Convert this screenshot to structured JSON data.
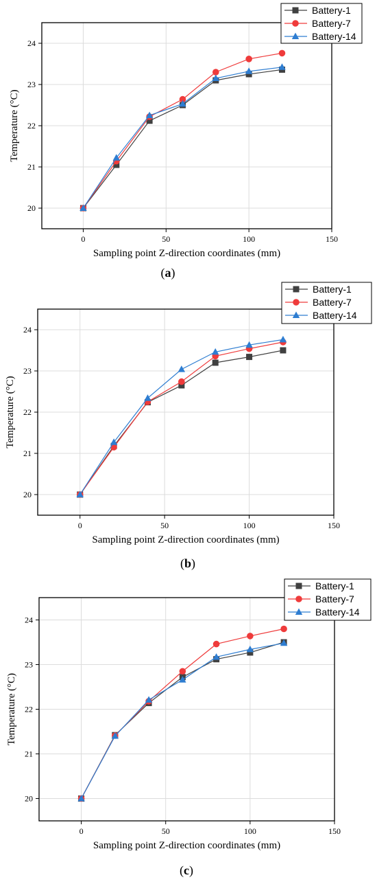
{
  "colors": {
    "Battery-1": "#404040",
    "Battery-7": "#ef3b3b",
    "Battery-14": "#2e7dd1",
    "grid": "#dcdcdc"
  },
  "chart_data": [
    {
      "type": "line",
      "panel": "(a)",
      "caption_letter": "a",
      "xlabel": "Sampling point Z-direction coordinates (mm)",
      "ylabel": "Temperature (°C)",
      "xlim": [
        -25,
        150
      ],
      "ylim": [
        19.5,
        24.5
      ],
      "xticks": [
        0,
        50,
        100,
        150
      ],
      "yticks": [
        20,
        21,
        22,
        23,
        24
      ],
      "grid": true,
      "legend_position": "top-right",
      "x": [
        0,
        20,
        40,
        60,
        80,
        100,
        120
      ],
      "series": [
        {
          "name": "Battery-1",
          "marker": "square",
          "values": [
            20.0,
            21.05,
            22.12,
            22.5,
            23.1,
            23.25,
            23.36
          ]
        },
        {
          "name": "Battery-7",
          "marker": "circle",
          "values": [
            20.0,
            21.14,
            22.22,
            22.64,
            23.3,
            23.62,
            23.76
          ]
        },
        {
          "name": "Battery-14",
          "marker": "triangle",
          "values": [
            20.0,
            21.22,
            22.25,
            22.53,
            23.15,
            23.32,
            23.42
          ]
        }
      ]
    },
    {
      "type": "line",
      "panel": "(b)",
      "caption_letter": "b",
      "xlabel": "Sampling point Z-direction coordinates (mm)",
      "ylabel": "Temperature (°C)",
      "xlim": [
        -25,
        150
      ],
      "ylim": [
        19.5,
        24.5
      ],
      "xticks": [
        0,
        50,
        100,
        150
      ],
      "yticks": [
        20,
        21,
        22,
        23,
        24
      ],
      "grid": true,
      "legend_position": "top-right",
      "x": [
        0,
        20,
        40,
        60,
        80,
        100,
        120
      ],
      "series": [
        {
          "name": "Battery-1",
          "marker": "square",
          "values": [
            20.0,
            21.18,
            22.24,
            22.65,
            23.2,
            23.34,
            23.5
          ]
        },
        {
          "name": "Battery-7",
          "marker": "circle",
          "values": [
            20.0,
            21.15,
            22.25,
            22.74,
            23.36,
            23.54,
            23.7
          ]
        },
        {
          "name": "Battery-14",
          "marker": "triangle",
          "values": [
            20.0,
            21.27,
            22.34,
            23.04,
            23.46,
            23.63,
            23.76
          ]
        }
      ]
    },
    {
      "type": "line",
      "panel": "(c)",
      "caption_letter": "c",
      "xlabel": "Sampling point Z-direction coordinates (mm)",
      "ylabel": "Temperature (°C)",
      "xlim": [
        -25,
        150
      ],
      "ylim": [
        19.5,
        24.5
      ],
      "xticks": [
        0,
        50,
        100,
        150
      ],
      "yticks": [
        20,
        21,
        22,
        23,
        24
      ],
      "grid": true,
      "legend_position": "top-right",
      "x": [
        0,
        20,
        40,
        60,
        80,
        100,
        120
      ],
      "series": [
        {
          "name": "Battery-1",
          "marker": "square",
          "values": [
            20.0,
            21.42,
            22.14,
            22.72,
            23.12,
            23.27,
            23.5
          ]
        },
        {
          "name": "Battery-7",
          "marker": "circle",
          "values": [
            20.0,
            21.41,
            22.18,
            22.85,
            23.46,
            23.64,
            23.8
          ]
        },
        {
          "name": "Battery-14",
          "marker": "triangle",
          "values": [
            20.0,
            21.4,
            22.21,
            22.66,
            23.17,
            23.34,
            23.48
          ]
        }
      ]
    }
  ]
}
